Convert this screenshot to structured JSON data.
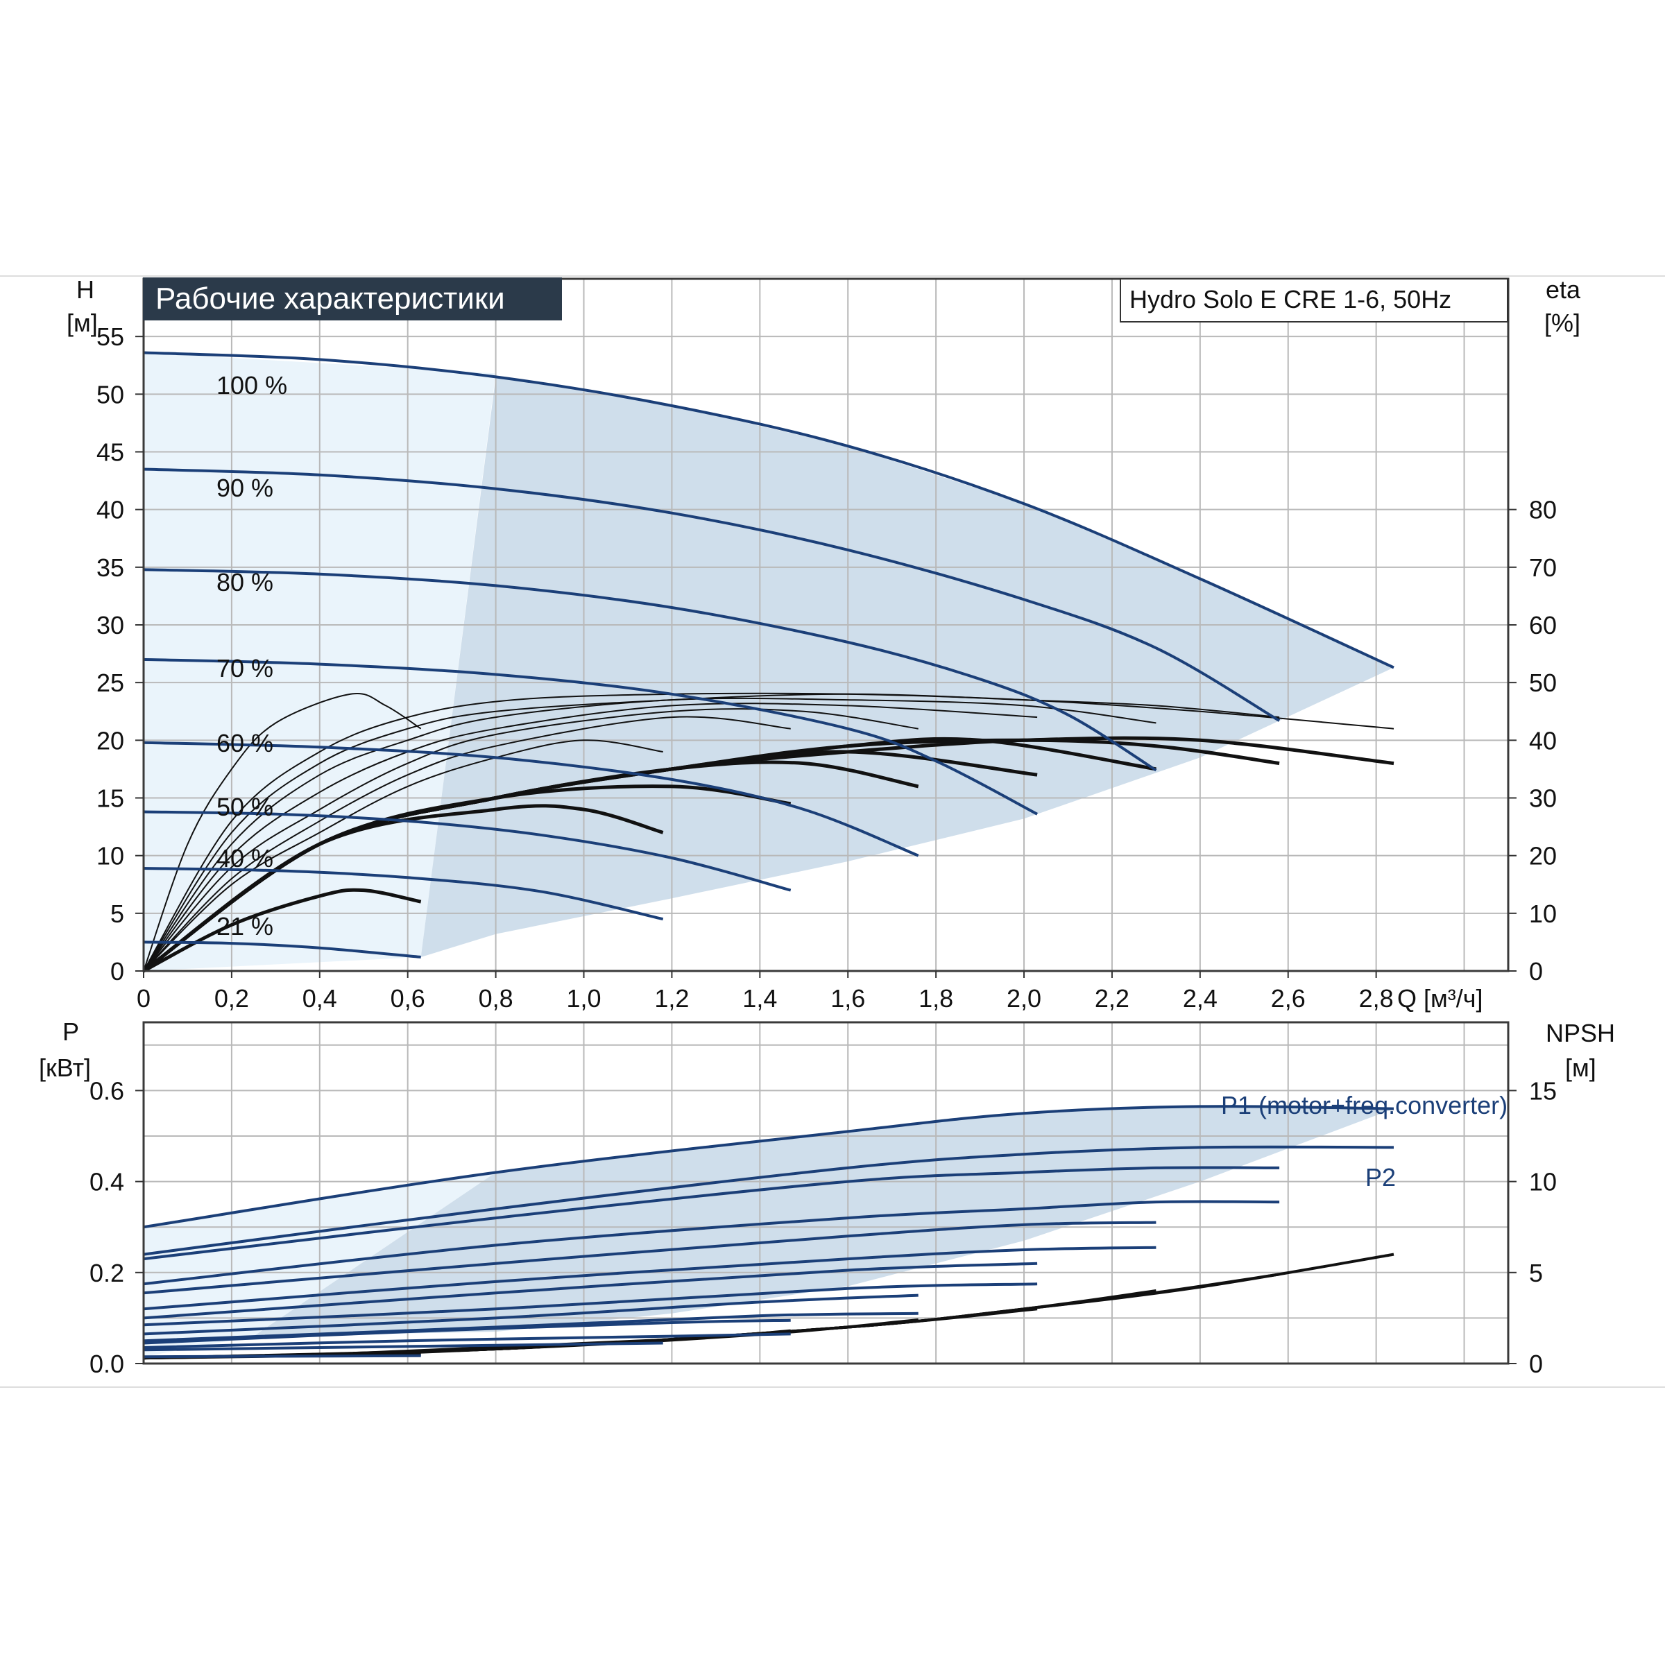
{
  "chart_data": [
    {
      "type": "line",
      "title": "Рабочие характеристики",
      "model": "Hydro Solo E CRE 1-6, 50Hz",
      "ylabel": "H",
      "ylabel_unit": "[м]",
      "y2label": "eta",
      "y2label_unit": "[%]",
      "xlabel": "Q [м³/ч]",
      "xlim": [
        0,
        3.1
      ],
      "ylim": [
        0,
        60
      ],
      "y2lim": [
        0,
        120
      ],
      "x_ticks": [
        "0",
        "0,2",
        "0,4",
        "0,6",
        "0,8",
        "1,0",
        "1,2",
        "1,4",
        "1,6",
        "1,8",
        "2,0",
        "2,2",
        "2,4",
        "2,6",
        "2,8"
      ],
      "y_ticks": [
        "0",
        "5",
        "10",
        "15",
        "20",
        "25",
        "30",
        "35",
        "40",
        "45",
        "50",
        "55"
      ],
      "y2_ticks": [
        "0",
        "10",
        "20",
        "30",
        "40",
        "50",
        "60",
        "70",
        "80"
      ],
      "grid": true,
      "speed_labels": [
        "100 %",
        "90 %",
        "80 %",
        "70 %",
        "60 %",
        "50 %",
        "40 %",
        "21 %"
      ],
      "head_curves": [
        {
          "name": "100 %",
          "x": [
            0,
            0.4,
            0.8,
            1.2,
            1.6,
            2.0,
            2.4,
            2.84
          ],
          "y": [
            53.6,
            53.0,
            51.5,
            49.0,
            45.5,
            40.5,
            34.0,
            26.3
          ]
        },
        {
          "name": "90 %",
          "x": [
            0,
            0.4,
            0.8,
            1.2,
            1.6,
            2.0,
            2.3,
            2.58
          ],
          "y": [
            43.5,
            43.0,
            41.8,
            39.7,
            36.5,
            32.2,
            28.0,
            21.7
          ]
        },
        {
          "name": "80 %",
          "x": [
            0,
            0.4,
            0.8,
            1.2,
            1.6,
            1.9,
            2.1,
            2.3
          ],
          "y": [
            34.8,
            34.4,
            33.4,
            31.5,
            28.5,
            25.3,
            22.2,
            17.4
          ]
        },
        {
          "name": "70 %",
          "x": [
            0,
            0.4,
            0.8,
            1.2,
            1.6,
            1.8,
            2.03
          ],
          "y": [
            27.0,
            26.6,
            25.7,
            24.0,
            21.0,
            18.2,
            13.6
          ]
        },
        {
          "name": "60 %",
          "x": [
            0,
            0.4,
            0.8,
            1.2,
            1.5,
            1.76
          ],
          "y": [
            19.8,
            19.4,
            18.5,
            16.6,
            14.0,
            10.0
          ]
        },
        {
          "name": "50 %",
          "x": [
            0,
            0.3,
            0.6,
            0.9,
            1.2,
            1.47
          ],
          "y": [
            13.8,
            13.6,
            13.0,
            11.8,
            9.8,
            7.0
          ]
        },
        {
          "name": "40 %",
          "x": [
            0,
            0.3,
            0.6,
            0.9,
            1.18
          ],
          "y": [
            8.9,
            8.7,
            8.1,
            6.9,
            4.5
          ]
        },
        {
          "name": "21 %",
          "x": [
            0,
            0.2,
            0.4,
            0.63
          ],
          "y": [
            2.5,
            2.4,
            2.0,
            1.2
          ]
        }
      ],
      "efficiency_curves": [
        {
          "x": [
            0,
            0.2,
            0.4,
            0.6,
            0.84,
            1.2,
            1.6,
            2.0,
            2.4,
            2.84
          ],
          "y": [
            0,
            26,
            38,
            44,
            47,
            48,
            48,
            47,
            45,
            42
          ]
        },
        {
          "x": [
            0,
            0.2,
            0.4,
            0.6,
            0.8,
            1.2,
            1.6,
            2.0,
            2.3,
            2.58
          ],
          "y": [
            0,
            24,
            36,
            42,
            45,
            47,
            48,
            47,
            46,
            44
          ]
        },
        {
          "x": [
            0,
            0.2,
            0.4,
            0.6,
            0.8,
            1.2,
            1.6,
            2.0,
            2.3
          ],
          "y": [
            0,
            22,
            34,
            40,
            44,
            47,
            47,
            46,
            43
          ]
        },
        {
          "x": [
            0,
            0.2,
            0.4,
            0.6,
            0.8,
            1.2,
            1.6,
            2.03
          ],
          "y": [
            0,
            20,
            31,
            38,
            42,
            46,
            46,
            44
          ]
        },
        {
          "x": [
            0,
            0.2,
            0.4,
            0.6,
            0.8,
            1.2,
            1.5,
            1.76
          ],
          "y": [
            0,
            18,
            28,
            36,
            41,
            45,
            45,
            42
          ]
        },
        {
          "x": [
            0,
            0.2,
            0.4,
            0.6,
            0.8,
            1.2,
            1.47
          ],
          "y": [
            0,
            16,
            26,
            34,
            39,
            44,
            42
          ]
        },
        {
          "x": [
            0,
            0.2,
            0.4,
            0.6,
            0.8,
            1.0,
            1.18
          ],
          "y": [
            0,
            15,
            24,
            32,
            37,
            40,
            38
          ]
        },
        {
          "x": [
            0,
            0.1,
            0.2,
            0.3,
            0.47,
            0.55,
            0.63
          ],
          "y": [
            0,
            22,
            35,
            43,
            48,
            46,
            42
          ]
        }
      ],
      "efficiency_bold_curves": [
        {
          "x": [
            0,
            0.4,
            0.8,
            1.2,
            1.6,
            2.0,
            2.4,
            2.84
          ],
          "y": [
            0,
            22,
            30,
            35,
            38,
            40,
            40,
            36
          ]
        },
        {
          "x": [
            0,
            0.4,
            0.8,
            1.2,
            1.6,
            2.0,
            2.3,
            2.58
          ],
          "y": [
            0,
            22,
            30,
            35,
            39,
            40,
            39,
            36
          ]
        },
        {
          "x": [
            0,
            0.4,
            0.8,
            1.2,
            1.6,
            1.9,
            2.3
          ],
          "y": [
            0,
            22,
            30,
            35,
            39,
            40,
            35
          ]
        },
        {
          "x": [
            0,
            0.4,
            0.8,
            1.2,
            1.6,
            2.03
          ],
          "y": [
            0,
            22,
            30,
            35,
            38,
            34
          ]
        },
        {
          "x": [
            0,
            0.4,
            0.8,
            1.2,
            1.5,
            1.76
          ],
          "y": [
            0,
            22,
            30,
            35,
            36,
            32
          ]
        },
        {
          "x": [
            0,
            0.4,
            0.8,
            1.2,
            1.47
          ],
          "y": [
            0,
            22,
            30,
            32,
            29
          ]
        },
        {
          "x": [
            0,
            0.4,
            0.8,
            1.0,
            1.18
          ],
          "y": [
            0,
            22,
            28,
            28,
            24
          ]
        },
        {
          "x": [
            0,
            0.2,
            0.4,
            0.5,
            0.63
          ],
          "y": [
            0,
            8,
            13,
            14,
            12
          ]
        }
      ]
    },
    {
      "type": "line",
      "ylabel": "P",
      "ylabel_unit": "[кВт]",
      "y2label": "NPSH",
      "y2label_unit": "[м]",
      "xlim": [
        0,
        3.1
      ],
      "ylim": [
        0,
        0.75
      ],
      "y2lim": [
        0,
        18.75
      ],
      "y_ticks": [
        "0.0",
        "0.2",
        "0.4",
        "0.6"
      ],
      "y2_ticks": [
        "0",
        "5",
        "10",
        "15"
      ],
      "grid": true,
      "legend_labels": [
        "P1 (motor+freq.converter)",
        "P2"
      ],
      "power_curves": [
        {
          "x": [
            0,
            0.8,
            1.6,
            2.0,
            2.4,
            2.84
          ],
          "y": [
            0.3,
            0.42,
            0.51,
            0.55,
            0.565,
            0.56
          ]
        },
        {
          "x": [
            0,
            0.8,
            1.6,
            2.0,
            2.4,
            2.84
          ],
          "y": [
            0.24,
            0.34,
            0.43,
            0.46,
            0.475,
            0.475
          ]
        },
        {
          "x": [
            0,
            0.8,
            1.6,
            2.0,
            2.3,
            2.58
          ],
          "y": [
            0.23,
            0.32,
            0.4,
            0.42,
            0.43,
            0.43
          ]
        },
        {
          "x": [
            0,
            0.8,
            1.6,
            2.0,
            2.3,
            2.58
          ],
          "y": [
            0.175,
            0.26,
            0.32,
            0.34,
            0.355,
            0.355
          ]
        },
        {
          "x": [
            0,
            0.8,
            1.6,
            2.0,
            2.3
          ],
          "y": [
            0.155,
            0.22,
            0.28,
            0.305,
            0.31
          ]
        },
        {
          "x": [
            0,
            0.8,
            1.6,
            2.0,
            2.3
          ],
          "y": [
            0.12,
            0.18,
            0.23,
            0.25,
            0.255
          ]
        },
        {
          "x": [
            0,
            0.8,
            1.6,
            2.03
          ],
          "y": [
            0.1,
            0.155,
            0.205,
            0.22
          ]
        },
        {
          "x": [
            0,
            0.8,
            1.6,
            2.03
          ],
          "y": [
            0.085,
            0.12,
            0.165,
            0.175
          ]
        },
        {
          "x": [
            0,
            0.8,
            1.4,
            1.76
          ],
          "y": [
            0.065,
            0.1,
            0.135,
            0.15
          ]
        },
        {
          "x": [
            0,
            0.8,
            1.4,
            1.76
          ],
          "y": [
            0.05,
            0.08,
            0.105,
            0.11
          ]
        },
        {
          "x": [
            0,
            0.6,
            1.2,
            1.47
          ],
          "y": [
            0.045,
            0.07,
            0.09,
            0.095
          ]
        },
        {
          "x": [
            0,
            0.6,
            1.2,
            1.47
          ],
          "y": [
            0.035,
            0.05,
            0.06,
            0.065
          ]
        },
        {
          "x": [
            0,
            0.4,
            0.8,
            1.18
          ],
          "y": [
            0.03,
            0.035,
            0.04,
            0.045
          ]
        },
        {
          "x": [
            0,
            0.3,
            0.63
          ],
          "y": [
            0.015,
            0.016,
            0.017
          ]
        }
      ],
      "npsh_curves": [
        {
          "x": [
            0,
            0.8,
            1.6,
            2.0,
            2.4,
            2.84
          ],
          "y2": [
            0.3,
            0.8,
            2.0,
            3.0,
            4.2,
            6.0
          ]
        },
        {
          "x": [
            0,
            0.8,
            1.6,
            2.0,
            2.3,
            2.58
          ],
          "y2": [
            0.3,
            0.8,
            2.0,
            3.0,
            3.9,
            4.9
          ]
        },
        {
          "x": [
            0,
            0.8,
            1.6,
            2.0,
            2.3
          ],
          "y2": [
            0.3,
            0.8,
            2.0,
            3.0,
            4.0
          ]
        },
        {
          "x": [
            0,
            0.8,
            1.6,
            2.03
          ],
          "y2": [
            0.3,
            0.8,
            2.0,
            3.0
          ]
        },
        {
          "x": [
            0,
            0.8,
            1.4,
            1.76
          ],
          "y2": [
            0.3,
            0.8,
            1.6,
            2.4
          ]
        },
        {
          "x": [
            0,
            0.6,
            1.2,
            1.47
          ],
          "y2": [
            0.3,
            0.6,
            1.3,
            1.8
          ]
        },
        {
          "x": [
            0,
            0.4,
            0.8,
            1.18
          ],
          "y2": [
            0.3,
            0.5,
            0.9,
            1.3
          ]
        },
        {
          "x": [
            0,
            0.3,
            0.63
          ],
          "y2": [
            0.3,
            0.4,
            0.5
          ]
        }
      ]
    }
  ],
  "colors": {
    "title_bg": "#2b3a4a",
    "title_fg": "#ffffff",
    "head_line": "#1b3f78",
    "power_line": "#1b3f78",
    "eff_line": "#111111",
    "region_light": "#eaf4fb",
    "region_main": "#cfdeeb",
    "grid": "#b9b9b9"
  }
}
